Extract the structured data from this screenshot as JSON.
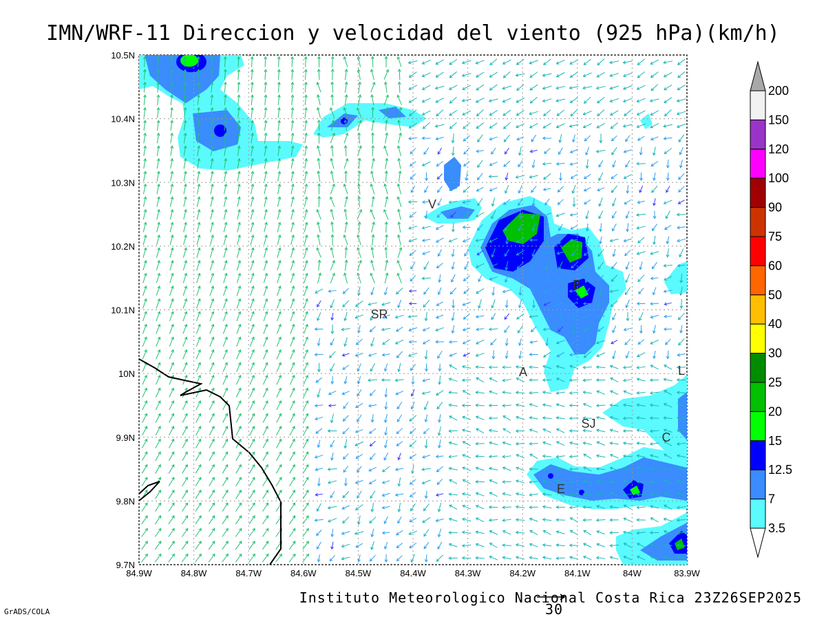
{
  "title": "IMN/WRF-11 Direccion y velocidad del viento (925 hPa)(km/h)",
  "footer": "Instituto Meteorologico Nacional Costa Rica 23Z26SEP2025",
  "credit": "GrADS/COLA",
  "reference_vector": "30",
  "lat_ticks": [
    "10.5N",
    "10.4N",
    "10.3N",
    "10.2N",
    "10.1N",
    "10N",
    "9.9N",
    "9.8N",
    "9.7N"
  ],
  "lon_ticks": [
    "84.9W",
    "84.8W",
    "84.7W",
    "84.6W",
    "84.5W",
    "84.4W",
    "84.3W",
    "84.2W",
    "84.1W",
    "84W",
    "83.9W"
  ],
  "colorbar": {
    "labels": [
      "200",
      "150",
      "120",
      "100",
      "90",
      "75",
      "60",
      "50",
      "40",
      "30",
      "25",
      "20",
      "15",
      "12.5",
      "7",
      "3.5"
    ],
    "colors": [
      "#a8a8a8",
      "#f2f2f2",
      "#9a34c8",
      "#ff00ff",
      "#a00000",
      "#cc3300",
      "#ff0000",
      "#ff6600",
      "#ffbe00",
      "#ffff00",
      "#008c00",
      "#00c000",
      "#00ff00",
      "#0000ff",
      "#3a8cff",
      "#5afaff"
    ]
  },
  "cities": [
    {
      "label": "V"
    },
    {
      "label": "B"
    },
    {
      "label": "SR"
    },
    {
      "label": "A"
    },
    {
      "label": "SJ"
    },
    {
      "label": "C"
    },
    {
      "label": "E"
    },
    {
      "label": "L"
    }
  ]
}
